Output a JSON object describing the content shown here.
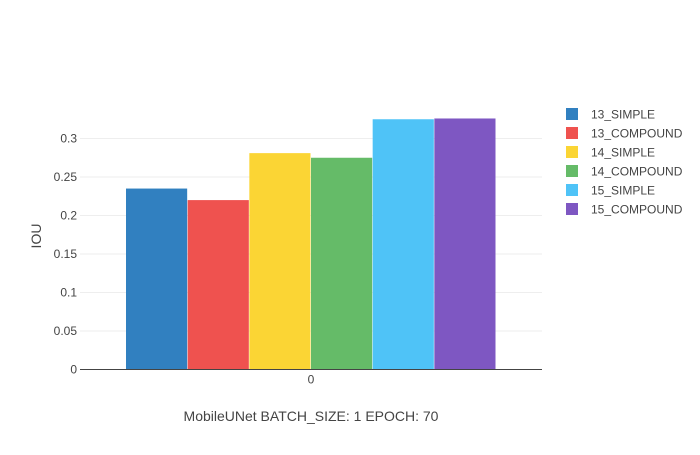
{
  "chart_data": {
    "type": "bar",
    "categories": [
      "0"
    ],
    "series": [
      {
        "name": "13_SIMPLE",
        "values": [
          0.235
        ],
        "color": "#3180c0"
      },
      {
        "name": "13_COMPOUND",
        "values": [
          0.22
        ],
        "color": "#ef524f"
      },
      {
        "name": "14_SIMPLE",
        "values": [
          0.281
        ],
        "color": "#fbd534"
      },
      {
        "name": "14_COMPOUND",
        "values": [
          0.275
        ],
        "color": "#65bb68"
      },
      {
        "name": "15_SIMPLE",
        "values": [
          0.325
        ],
        "color": "#4fc3f7"
      },
      {
        "name": "15_COMPOUND",
        "values": [
          0.326
        ],
        "color": "#7e57c2"
      }
    ],
    "title": "",
    "xlabel": "MobileUNet BATCH_SIZE: 1 EPOCH: 70",
    "ylabel": "IOU",
    "ylim": [
      0,
      0.35
    ],
    "yticks": [
      0,
      0.05,
      0.1,
      0.15,
      0.2,
      0.25,
      0.3
    ],
    "ytick_labels": [
      "0",
      "0.05",
      "0.1",
      "0.15",
      "0.2",
      "0.25",
      "0.3"
    ],
    "grid": true,
    "legend_position": "top-right"
  }
}
